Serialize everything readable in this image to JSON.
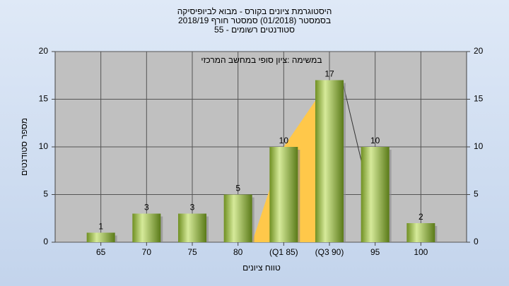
{
  "chart_data": {
    "type": "bar",
    "title": [
      "היסטוגרמת ציונים בקורס - מבוא לביופיסיקה",
      "בסמסטר  (01/2018)  סמסטר חורף 2018/19",
      "סטודנטים רשומים - 55"
    ],
    "annotation": "במשימה :ציון סופי במחשב המרכזי",
    "xlabel": "טווח ציונים",
    "ylabel": "מספר סטודנטים",
    "categories": [
      "65",
      "70",
      "75",
      "80",
      "(Q1 85)",
      "(Q3 90)",
      "95",
      "100"
    ],
    "values": [
      1,
      3,
      3,
      5,
      10,
      17,
      10,
      2
    ],
    "color": "#8fb03a",
    "ylim": [
      0,
      20
    ],
    "yticks": [
      0,
      5,
      10,
      15,
      20
    ],
    "y2lim": [
      0,
      20
    ],
    "y2ticks": [
      0,
      5,
      10,
      15,
      20
    ],
    "grid": true
  }
}
